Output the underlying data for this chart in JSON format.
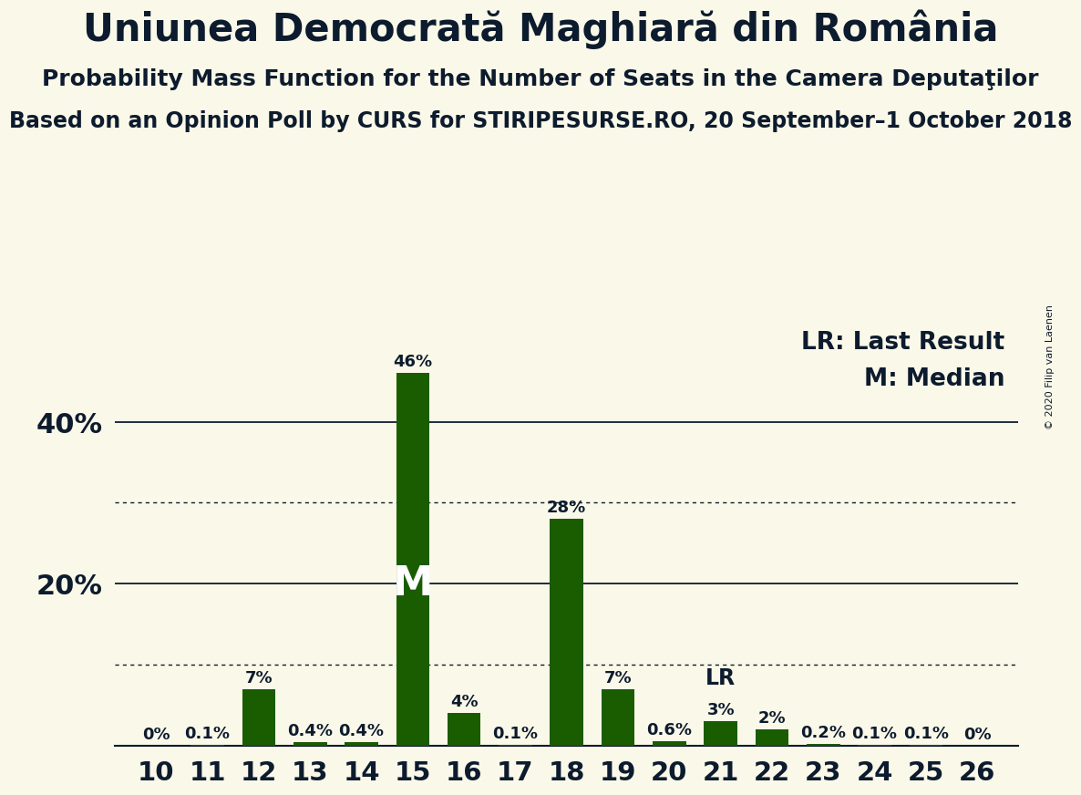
{
  "title": "Uniunea Democrată Maghiară din România",
  "subtitle1": "Probability Mass Function for the Number of Seats in the Camera Deputaţilor",
  "subtitle2": "Based on an Opinion Poll by CURS for STIRIPESURSE.RO, 20 September–1 October 2018",
  "copyright": "© 2020 Filip van Laenen",
  "seats": [
    10,
    11,
    12,
    13,
    14,
    15,
    16,
    17,
    18,
    19,
    20,
    21,
    22,
    23,
    24,
    25,
    26
  ],
  "probabilities": [
    0.0,
    0.1,
    7.0,
    0.4,
    0.4,
    46.0,
    4.0,
    0.1,
    28.0,
    7.0,
    0.6,
    3.0,
    2.0,
    0.2,
    0.1,
    0.1,
    0.0
  ],
  "bar_color": "#1a5c00",
  "background_color": "#faf8e8",
  "text_color": "#0d1b2e",
  "median_seat": 15,
  "lr_seat": 21,
  "legend_lr": "LR: Last Result",
  "legend_m": "M: Median",
  "solid_grid_lines": [
    20.0,
    40.0
  ],
  "dotted_grid_lines": [
    10.0,
    30.0
  ],
  "ylim": [
    0,
    52
  ],
  "bar_width": 0.65,
  "label_fontsize": 13,
  "title_fontsize": 30,
  "subtitle1_fontsize": 18,
  "subtitle2_fontsize": 17,
  "tick_fontsize": 21,
  "ytick_fontsize": 22,
  "legend_fontsize": 19,
  "m_fontsize": 32,
  "lr_label_fontsize": 17,
  "copyright_fontsize": 8
}
